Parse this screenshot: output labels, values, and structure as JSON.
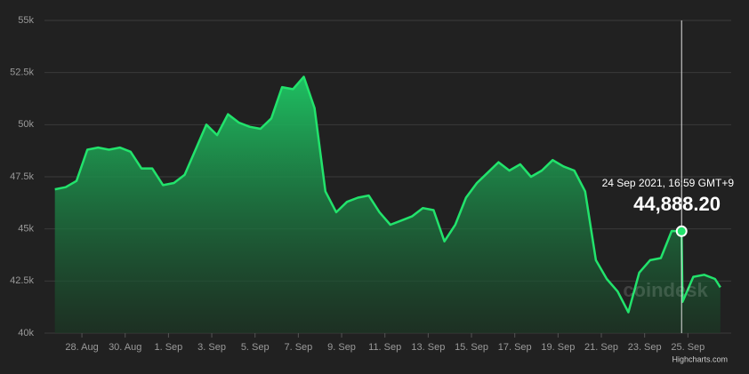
{
  "chart_data": {
    "type": "area",
    "series": [
      {
        "color": "#22e36c",
        "x": [
          "2021-08-26T18:00",
          "2021-08-27T06:00",
          "2021-08-27T18:00",
          "2021-08-28T06:00",
          "2021-08-28T18:00",
          "2021-08-29T06:00",
          "2021-08-29T18:00",
          "2021-08-30T06:00",
          "2021-08-30T18:00",
          "2021-08-31T06:00",
          "2021-08-31T18:00",
          "2021-09-01T06:00",
          "2021-09-01T18:00",
          "2021-09-02T06:00",
          "2021-09-02T18:00",
          "2021-09-03T06:00",
          "2021-09-03T18:00",
          "2021-09-04T06:00",
          "2021-09-04T18:00",
          "2021-09-05T06:00",
          "2021-09-05T18:00",
          "2021-09-06T06:00",
          "2021-09-06T18:00",
          "2021-09-07T06:00",
          "2021-09-07T18:00",
          "2021-09-08T06:00",
          "2021-09-08T18:00",
          "2021-09-09T06:00",
          "2021-09-09T18:00",
          "2021-09-10T06:00",
          "2021-09-10T18:00",
          "2021-09-11T06:00",
          "2021-09-11T18:00",
          "2021-09-12T06:00",
          "2021-09-12T18:00",
          "2021-09-13T06:00",
          "2021-09-13T18:00",
          "2021-09-14T06:00",
          "2021-09-14T18:00",
          "2021-09-15T06:00",
          "2021-09-15T18:00",
          "2021-09-16T06:00",
          "2021-09-16T18:00",
          "2021-09-17T06:00",
          "2021-09-17T18:00",
          "2021-09-18T06:00",
          "2021-09-18T18:00",
          "2021-09-19T06:00",
          "2021-09-19T18:00",
          "2021-09-20T06:00",
          "2021-09-20T18:00",
          "2021-09-21T06:00",
          "2021-09-21T18:00",
          "2021-09-22T06:00",
          "2021-09-22T18:00",
          "2021-09-23T06:00",
          "2021-09-23T18:00",
          "2021-09-24T06:00",
          "2021-09-24T16:59",
          "2021-09-24T18:00",
          "2021-09-25T06:00",
          "2021-09-25T18:00",
          "2021-09-26T06:00",
          "2021-09-26T12:00"
        ],
        "values": [
          46900,
          47000,
          47300,
          48800,
          48900,
          48800,
          48900,
          48700,
          47900,
          47900,
          47100,
          47200,
          47600,
          48800,
          50000,
          49500,
          50500,
          50100,
          49900,
          49800,
          50300,
          51800,
          51700,
          52300,
          50800,
          46800,
          45800,
          46300,
          46500,
          46600,
          45800,
          45200,
          45400,
          45600,
          46000,
          45900,
          44400,
          45200,
          46500,
          47200,
          47700,
          48200,
          47800,
          48100,
          47500,
          47800,
          48300,
          48000,
          47800,
          46800,
          43500,
          42600,
          42000,
          41000,
          42900,
          43500,
          43600,
          44900,
          44888.2,
          41500,
          42700,
          42800,
          42600,
          42200
        ]
      }
    ],
    "xlim": [
      "2021-08-26T06:30",
      "2021-09-27T00:00"
    ],
    "xticks": [
      {
        "value": "2021-08-28T00:00",
        "label": "28. Aug"
      },
      {
        "value": "2021-08-30T00:00",
        "label": "30. Aug"
      },
      {
        "value": "2021-09-01T00:00",
        "label": "1. Sep"
      },
      {
        "value": "2021-09-03T00:00",
        "label": "3. Sep"
      },
      {
        "value": "2021-09-05T00:00",
        "label": "5. Sep"
      },
      {
        "value": "2021-09-07T00:00",
        "label": "7. Sep"
      },
      {
        "value": "2021-09-09T00:00",
        "label": "9. Sep"
      },
      {
        "value": "2021-09-11T00:00",
        "label": "11. Sep"
      },
      {
        "value": "2021-09-13T00:00",
        "label": "13. Sep"
      },
      {
        "value": "2021-09-15T00:00",
        "label": "15. Sep"
      },
      {
        "value": "2021-09-17T00:00",
        "label": "17. Sep"
      },
      {
        "value": "2021-09-19T00:00",
        "label": "19. Sep"
      },
      {
        "value": "2021-09-21T00:00",
        "label": "21. Sep"
      },
      {
        "value": "2021-09-23T00:00",
        "label": "23. Sep"
      },
      {
        "value": "2021-09-25T00:00",
        "label": "25. Sep"
      }
    ],
    "ylim": [
      40000,
      55000
    ],
    "yticks": [
      {
        "value": 40000,
        "label": "40k"
      },
      {
        "value": 42500,
        "label": "42.5k"
      },
      {
        "value": 45000,
        "label": "45k"
      },
      {
        "value": 47500,
        "label": "47.5k"
      },
      {
        "value": 50000,
        "label": "50k"
      },
      {
        "value": 52500,
        "label": "52.5k"
      },
      {
        "value": 55000,
        "label": "55k"
      }
    ],
    "grid": true,
    "hover": {
      "x": "2021-09-24T16:59",
      "value": 44888.2,
      "value_label": "44,888.20",
      "label": "24 Sep 2021, 16:59 GMT+9"
    },
    "watermark": "coindesk",
    "credits": "Highcharts.com"
  }
}
